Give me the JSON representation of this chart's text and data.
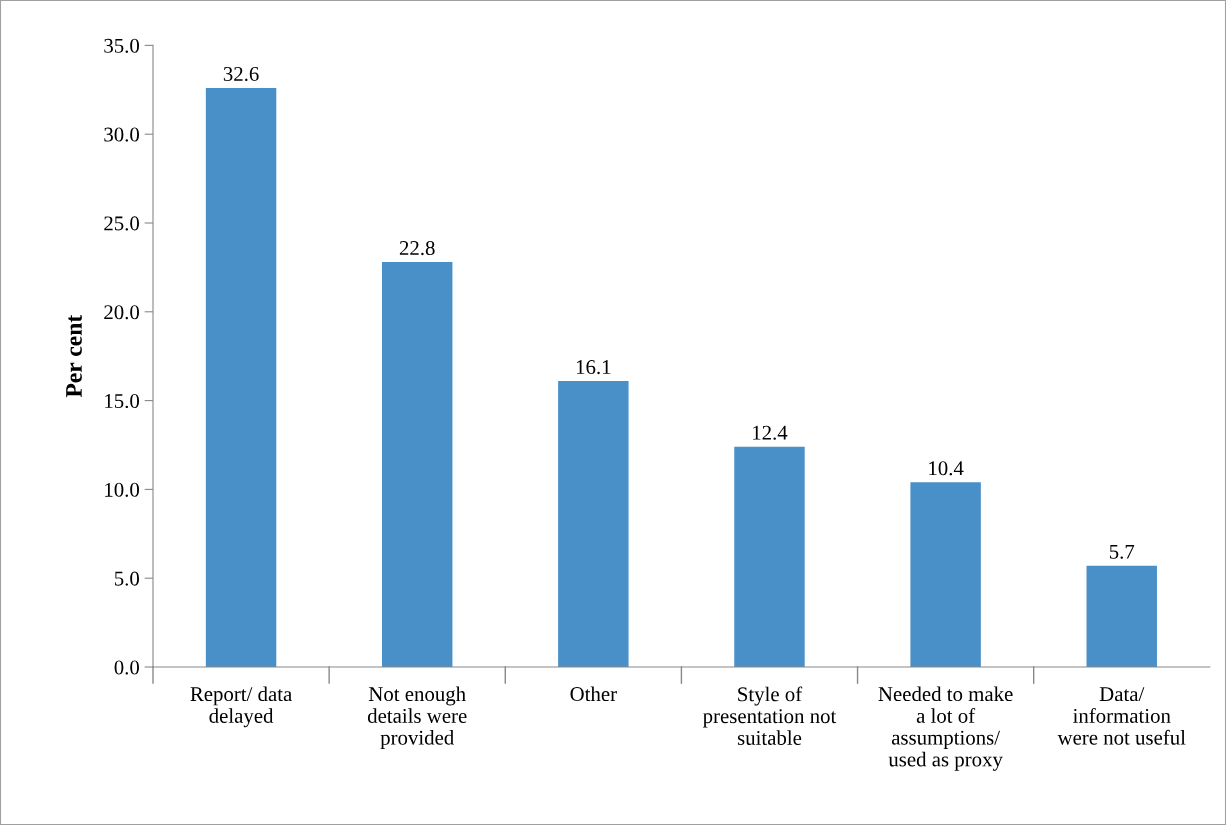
{
  "chart_data": {
    "type": "bar",
    "ylabel": "Per cent",
    "categories": [
      "Report/ data\ndelayed",
      "Not enough\ndetails were\nprovided",
      "Other",
      "Style of\npresentation not\nsuitable",
      "Needed to make\na lot of\nassumptions/\nused as proxy",
      "Data/\ninformation\nwere not useful"
    ],
    "values": [
      32.6,
      22.8,
      16.1,
      12.4,
      10.4,
      5.7
    ],
    "color": "#4a90c8",
    "ylim": [
      0,
      35
    ],
    "yticks": [
      {
        "value": 0,
        "label": "0.0"
      },
      {
        "value": 5,
        "label": "5.0"
      },
      {
        "value": 10,
        "label": "10.0"
      },
      {
        "value": 15,
        "label": "15.0"
      },
      {
        "value": 20,
        "label": "20.0"
      },
      {
        "value": 25,
        "label": "25.0"
      },
      {
        "value": 30,
        "label": "30.0"
      },
      {
        "value": 35,
        "label": "35.0"
      }
    ],
    "data_labels": true,
    "grid": false,
    "legend": false
  }
}
